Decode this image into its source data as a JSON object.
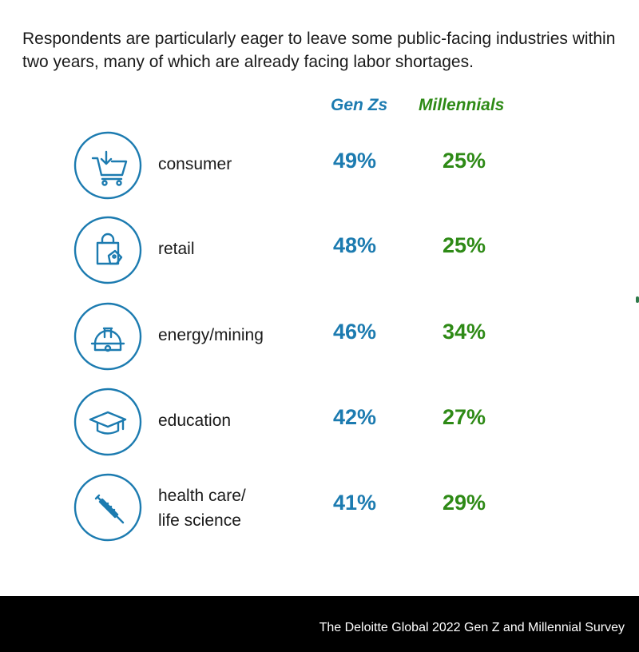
{
  "headline": "Respondents are particularly eager to leave some public-facing industries within two years, many of which are already facing labor shortages.",
  "footer": {
    "source": "The Deloitte Global 2022 Gen Z and Millennial Survey"
  },
  "colors": {
    "gen_z": "#1c7bb0",
    "millennials": "#2e8a16",
    "icon": "#1c7bb0",
    "footer_bg": "#000000"
  },
  "chart_data": {
    "type": "table",
    "title": "Respondents are particularly eager to leave some public-facing industries within two years, many of which are already facing labor shortages.",
    "columns": [
      "Gen Zs",
      "Millennials"
    ],
    "categories": [
      "consumer",
      "retail",
      "energy/mining",
      "education",
      "health care/ life science"
    ],
    "series": [
      {
        "name": "Gen Zs",
        "values": [
          "49%",
          "48%",
          "46%",
          "42%",
          "41%"
        ]
      },
      {
        "name": "Millennials",
        "values": [
          "25%",
          "25%",
          "34%",
          "27%",
          "29%"
        ]
      }
    ],
    "rows": [
      {
        "icon": "shopping-cart-icon",
        "label_lines": [
          "consumer"
        ],
        "gen_z": "49%",
        "millennials": "25%"
      },
      {
        "icon": "shopping-bag-icon",
        "label_lines": [
          "retail"
        ],
        "gen_z": "48%",
        "millennials": "25%"
      },
      {
        "icon": "hard-hat-icon",
        "label_lines": [
          "energy/mining"
        ],
        "gen_z": "46%",
        "millennials": "34%"
      },
      {
        "icon": "graduation-cap-icon",
        "label_lines": [
          "education"
        ],
        "gen_z": "42%",
        "millennials": "27%"
      },
      {
        "icon": "syringe-icon",
        "label_lines": [
          "health care/",
          "life science"
        ],
        "gen_z": "41%",
        "millennials": "29%"
      }
    ]
  }
}
